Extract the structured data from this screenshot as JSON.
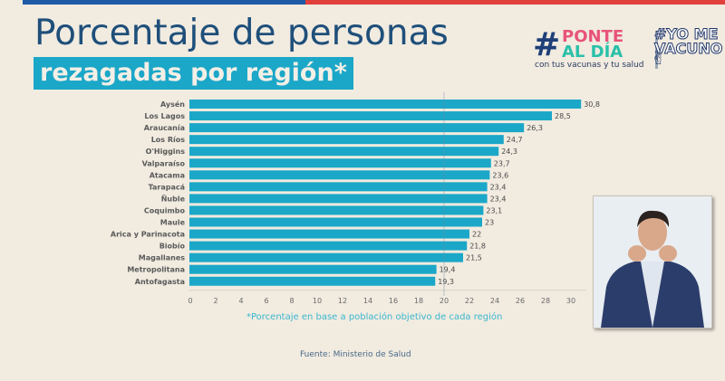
{
  "header": {
    "title_line1": "Porcentaje de personas",
    "title_line2": "rezagadas por región*"
  },
  "logos": {
    "ponte": {
      "hash": "#",
      "line1": "PONTE",
      "line2": "AL DÍA",
      "tagline": "con tus vacunas y tu salud"
    },
    "yomevacuno": {
      "line1": "#YO ME",
      "line2": "VACUNO",
      "icon": "peace-hand-icon"
    }
  },
  "colors": {
    "bar": "#1ba7c8",
    "title": "#1f4f7a",
    "accent_blue": "#1e5aa6",
    "accent_red": "#e0403c"
  },
  "chart_data": {
    "type": "bar",
    "orientation": "horizontal",
    "title": "Porcentaje de personas rezagadas por región*",
    "xlabel": "",
    "ylabel": "",
    "xlim": [
      0,
      31
    ],
    "xticks": [
      0,
      2,
      4,
      6,
      8,
      10,
      12,
      14,
      16,
      18,
      20,
      22,
      24,
      26,
      28,
      30
    ],
    "reference_line": 20,
    "categories": [
      "Aysén",
      "Los Lagos",
      "Araucanía",
      "Los Ríos",
      "O'Higgins",
      "Valparaíso",
      "Atacama",
      "Tarapacá",
      "Ñuble",
      "Coquimbo",
      "Maule",
      "Arica y Parinacota",
      "Biobío",
      "Magallanes",
      "Metropolitana",
      "Antofagasta"
    ],
    "values": [
      30.8,
      28.5,
      26.3,
      24.7,
      24.3,
      23.7,
      23.6,
      23.4,
      23.4,
      23.1,
      23,
      22,
      21.8,
      21.5,
      19.4,
      19.3
    ],
    "value_labels": [
      "30,8",
      "28,5",
      "26,3",
      "24,7",
      "24,3",
      "23,7",
      "23,6",
      "23,4",
      "23,4",
      "23,1",
      "23",
      "22",
      "21,8",
      "21,5",
      "19,4",
      "19,3"
    ],
    "tick_labels": [
      "0",
      "2",
      "4",
      "6",
      "8",
      "10",
      "12",
      "14",
      "16",
      "18",
      "20",
      "22",
      "24",
      "26",
      "28",
      "30"
    ],
    "footnote": "*Porcentaje en base a población objetivo de cada región",
    "source": "Fuente: Ministerio de Salud",
    "legend": "none",
    "grid": false
  },
  "video": {
    "description": "sign-language-interpreter"
  }
}
